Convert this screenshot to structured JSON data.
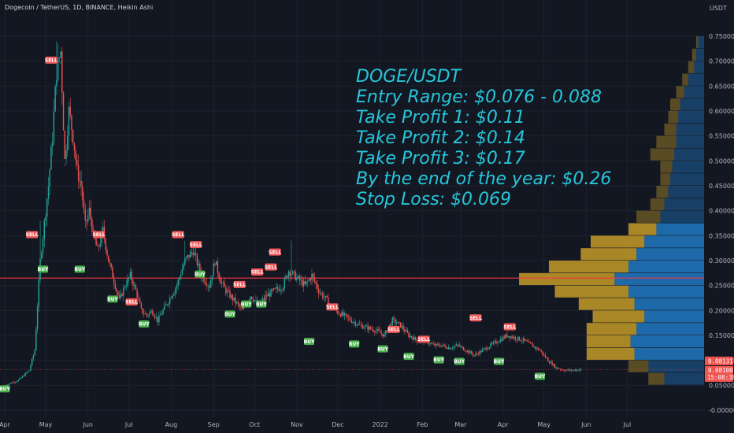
{
  "header": {
    "symbol": "Dogecoin / TetherUS, 1D, BINANCE, Heikin Ashi"
  },
  "axis": {
    "currency": "USDT",
    "ylim": [
      -0.01,
      0.76
    ],
    "y_ticks": [
      "0.75000",
      "0.70000",
      "0.65000",
      "0.60000",
      "0.55000",
      "0.50000",
      "0.45000",
      "0.40000",
      "0.35000",
      "0.30000",
      "0.25000",
      "0.20000",
      "0.15000",
      "0.10000",
      "0.05000",
      "-0.00000"
    ],
    "x_ticks": [
      {
        "label": "Apr",
        "day": 0
      },
      {
        "label": "May",
        "day": 30
      },
      {
        "label": "Jun",
        "day": 61
      },
      {
        "label": "Jul",
        "day": 91
      },
      {
        "label": "Aug",
        "day": 122
      },
      {
        "label": "Sep",
        "day": 153
      },
      {
        "label": "Oct",
        "day": 183
      },
      {
        "label": "Nov",
        "day": 214
      },
      {
        "label": "Dec",
        "day": 244
      },
      {
        "label": "2022",
        "day": 275
      },
      {
        "label": "Feb",
        "day": 306
      },
      {
        "label": "Mar",
        "day": 334
      },
      {
        "label": "Apr",
        "day": 365
      },
      {
        "label": "May",
        "day": 395
      },
      {
        "label": "Jun",
        "day": 426
      },
      {
        "label": "Jul",
        "day": 456
      }
    ]
  },
  "price_tags": {
    "last_price": "0.08131",
    "current": "0.08100",
    "countdown": "15:08:38"
  },
  "annotation": [
    "DOGE/USDT",
    "Entry Range: $0.076 - 0.088",
    "Take Profit 1: $0.11",
    "Take Profit 2: $0.14",
    "Take Profit 3: $0.17",
    "By the end of the year: $0.26",
    "Stop Loss: $0.069"
  ],
  "colors": {
    "up": "#26a69a",
    "down": "#ef5350",
    "hline": "#f23645",
    "vp_buy": "#1f72b8",
    "vp_sell": "#c49a27",
    "note": "#26c6da"
  },
  "chart_data": {
    "type": "candlestick",
    "x_unit": "days since Apr 1, 2021",
    "horizontal_line": 0.265,
    "path": [
      [
        0,
        0.05
      ],
      [
        10,
        0.06
      ],
      [
        18,
        0.08
      ],
      [
        22,
        0.12
      ],
      [
        26,
        0.3
      ],
      [
        28,
        0.35
      ],
      [
        32,
        0.45
      ],
      [
        35,
        0.55
      ],
      [
        38,
        0.68
      ],
      [
        41,
        0.72
      ],
      [
        44,
        0.5
      ],
      [
        47,
        0.6
      ],
      [
        50,
        0.55
      ],
      [
        53,
        0.48
      ],
      [
        56,
        0.45
      ],
      [
        59,
        0.37
      ],
      [
        62,
        0.4
      ],
      [
        65,
        0.35
      ],
      [
        68,
        0.32
      ],
      [
        72,
        0.36
      ],
      [
        76,
        0.3
      ],
      [
        80,
        0.26
      ],
      [
        84,
        0.22
      ],
      [
        88,
        0.25
      ],
      [
        92,
        0.27
      ],
      [
        96,
        0.24
      ],
      [
        100,
        0.2
      ],
      [
        104,
        0.19
      ],
      [
        108,
        0.2
      ],
      [
        112,
        0.18
      ],
      [
        116,
        0.2
      ],
      [
        120,
        0.22
      ],
      [
        126,
        0.25
      ],
      [
        132,
        0.3
      ],
      [
        138,
        0.32
      ],
      [
        144,
        0.27
      ],
      [
        150,
        0.25
      ],
      [
        154,
        0.3
      ],
      [
        158,
        0.26
      ],
      [
        162,
        0.24
      ],
      [
        168,
        0.22
      ],
      [
        174,
        0.2
      ],
      [
        180,
        0.23
      ],
      [
        186,
        0.21
      ],
      [
        192,
        0.23
      ],
      [
        198,
        0.24
      ],
      [
        204,
        0.25
      ],
      [
        208,
        0.28
      ],
      [
        212,
        0.27
      ],
      [
        216,
        0.26
      ],
      [
        220,
        0.25
      ],
      [
        225,
        0.27
      ],
      [
        230,
        0.24
      ],
      [
        236,
        0.22
      ],
      [
        242,
        0.2
      ],
      [
        248,
        0.19
      ],
      [
        254,
        0.18
      ],
      [
        260,
        0.17
      ],
      [
        266,
        0.165
      ],
      [
        272,
        0.16
      ],
      [
        278,
        0.15
      ],
      [
        284,
        0.18
      ],
      [
        290,
        0.17
      ],
      [
        296,
        0.15
      ],
      [
        302,
        0.14
      ],
      [
        308,
        0.14
      ],
      [
        314,
        0.13
      ],
      [
        320,
        0.13
      ],
      [
        326,
        0.125
      ],
      [
        332,
        0.13
      ],
      [
        338,
        0.12
      ],
      [
        344,
        0.11
      ],
      [
        350,
        0.12
      ],
      [
        356,
        0.13
      ],
      [
        362,
        0.14
      ],
      [
        368,
        0.15
      ],
      [
        374,
        0.145
      ],
      [
        380,
        0.14
      ],
      [
        386,
        0.13
      ],
      [
        392,
        0.12
      ],
      [
        398,
        0.1
      ],
      [
        404,
        0.085
      ],
      [
        410,
        0.08
      ],
      [
        416,
        0.08
      ],
      [
        422,
        0.082
      ]
    ],
    "spikes": [
      [
        38,
        0.74
      ],
      [
        41,
        0.7
      ],
      [
        44,
        0.49
      ],
      [
        26,
        0.38
      ],
      [
        72,
        0.38
      ],
      [
        132,
        0.34
      ],
      [
        210,
        0.34
      ],
      [
        240,
        0.2
      ]
    ],
    "signals": [
      {
        "label": "SELL",
        "day": 34,
        "price": 0.695,
        "side": "above"
      },
      {
        "label": "SELL",
        "day": 20,
        "price": 0.345,
        "side": "above"
      },
      {
        "label": "BUY",
        "day": 28,
        "price": 0.29,
        "side": "below"
      },
      {
        "label": "BUY",
        "day": 55,
        "price": 0.29,
        "side": "below"
      },
      {
        "label": "SELL",
        "day": 69,
        "price": 0.345,
        "side": "above"
      },
      {
        "label": "BUY",
        "day": 79,
        "price": 0.23,
        "side": "below"
      },
      {
        "label": "SELL",
        "day": 93,
        "price": 0.21,
        "side": "above"
      },
      {
        "label": "BUY",
        "day": 102,
        "price": 0.18,
        "side": "below"
      },
      {
        "label": "SELL",
        "day": 127,
        "price": 0.345,
        "side": "above"
      },
      {
        "label": "SELL",
        "day": 140,
        "price": 0.325,
        "side": "above"
      },
      {
        "label": "BUY",
        "day": 143,
        "price": 0.28,
        "side": "below"
      },
      {
        "label": "BUY",
        "day": 165,
        "price": 0.2,
        "side": "below"
      },
      {
        "label": "SELL",
        "day": 172,
        "price": 0.245,
        "side": "above"
      },
      {
        "label": "BUY",
        "day": 177,
        "price": 0.22,
        "side": "below"
      },
      {
        "label": "SELL",
        "day": 185,
        "price": 0.27,
        "side": "above"
      },
      {
        "label": "BUY",
        "day": 188,
        "price": 0.22,
        "side": "below"
      },
      {
        "label": "SELL",
        "day": 195,
        "price": 0.28,
        "side": "above"
      },
      {
        "label": "SELL",
        "day": 198,
        "price": 0.31,
        "side": "above"
      },
      {
        "label": "SELL",
        "day": 240,
        "price": 0.2,
        "side": "above"
      },
      {
        "label": "BUY",
        "day": 223,
        "price": 0.145,
        "side": "below"
      },
      {
        "label": "BUY",
        "day": 256,
        "price": 0.14,
        "side": "below"
      },
      {
        "label": "BUY",
        "day": 277,
        "price": 0.13,
        "side": "below"
      },
      {
        "label": "SELL",
        "day": 285,
        "price": 0.155,
        "side": "above"
      },
      {
        "label": "SELL",
        "day": 307,
        "price": 0.135,
        "side": "above"
      },
      {
        "label": "BUY",
        "day": 296,
        "price": 0.115,
        "side": "below"
      },
      {
        "label": "BUY",
        "day": 318,
        "price": 0.108,
        "side": "below"
      },
      {
        "label": "BUY",
        "day": 333,
        "price": 0.105,
        "side": "below"
      },
      {
        "label": "SELL",
        "day": 345,
        "price": 0.178,
        "side": "above"
      },
      {
        "label": "SELL",
        "day": 370,
        "price": 0.16,
        "side": "above"
      },
      {
        "label": "BUY",
        "day": 362,
        "price": 0.105,
        "side": "below"
      },
      {
        "label": "BUY",
        "day": 392,
        "price": 0.075,
        "side": "below"
      },
      {
        "label": "BUY",
        "day": 0,
        "price": 0.05,
        "side": "below"
      }
    ],
    "volume_profile": [
      {
        "from": 0.725,
        "to": 0.75,
        "buy": 3,
        "sell": 1
      },
      {
        "from": 0.7,
        "to": 0.725,
        "buy": 4,
        "sell": 2
      },
      {
        "from": 0.675,
        "to": 0.7,
        "buy": 5,
        "sell": 3
      },
      {
        "from": 0.65,
        "to": 0.675,
        "buy": 8,
        "sell": 3
      },
      {
        "from": 0.625,
        "to": 0.65,
        "buy": 10,
        "sell": 4
      },
      {
        "from": 0.6,
        "to": 0.625,
        "buy": 12,
        "sell": 5
      },
      {
        "from": 0.575,
        "to": 0.6,
        "buy": 13,
        "sell": 5
      },
      {
        "from": 0.55,
        "to": 0.575,
        "buy": 14,
        "sell": 6
      },
      {
        "from": 0.525,
        "to": 0.55,
        "buy": 14,
        "sell": 10
      },
      {
        "from": 0.5,
        "to": 0.525,
        "buy": 15,
        "sell": 12
      },
      {
        "from": 0.475,
        "to": 0.5,
        "buy": 16,
        "sell": 6
      },
      {
        "from": 0.45,
        "to": 0.475,
        "buy": 17,
        "sell": 5
      },
      {
        "from": 0.425,
        "to": 0.45,
        "buy": 18,
        "sell": 6
      },
      {
        "from": 0.4,
        "to": 0.425,
        "buy": 20,
        "sell": 7
      },
      {
        "from": 0.375,
        "to": 0.4,
        "buy": 22,
        "sell": 12
      },
      {
        "from": 0.35,
        "to": 0.375,
        "buy": 24,
        "sell": 14
      },
      {
        "from": 0.325,
        "to": 0.35,
        "buy": 30,
        "sell": 27
      },
      {
        "from": 0.3,
        "to": 0.325,
        "buy": 34,
        "sell": 28
      },
      {
        "from": 0.275,
        "to": 0.3,
        "buy": 38,
        "sell": 40
      },
      {
        "from": 0.25,
        "to": 0.275,
        "buy": 45,
        "sell": 48
      },
      {
        "from": 0.225,
        "to": 0.25,
        "buy": 38,
        "sell": 37
      },
      {
        "from": 0.2,
        "to": 0.225,
        "buy": 35,
        "sell": 28
      },
      {
        "from": 0.175,
        "to": 0.2,
        "buy": 30,
        "sell": 26
      },
      {
        "from": 0.15,
        "to": 0.175,
        "buy": 34,
        "sell": 25
      },
      {
        "from": 0.125,
        "to": 0.15,
        "buy": 37,
        "sell": 22
      },
      {
        "from": 0.1,
        "to": 0.125,
        "buy": 35,
        "sell": 24
      },
      {
        "from": 0.075,
        "to": 0.1,
        "buy": 28,
        "sell": 10
      },
      {
        "from": 0.05,
        "to": 0.075,
        "buy": 20,
        "sell": 8
      }
    ]
  }
}
